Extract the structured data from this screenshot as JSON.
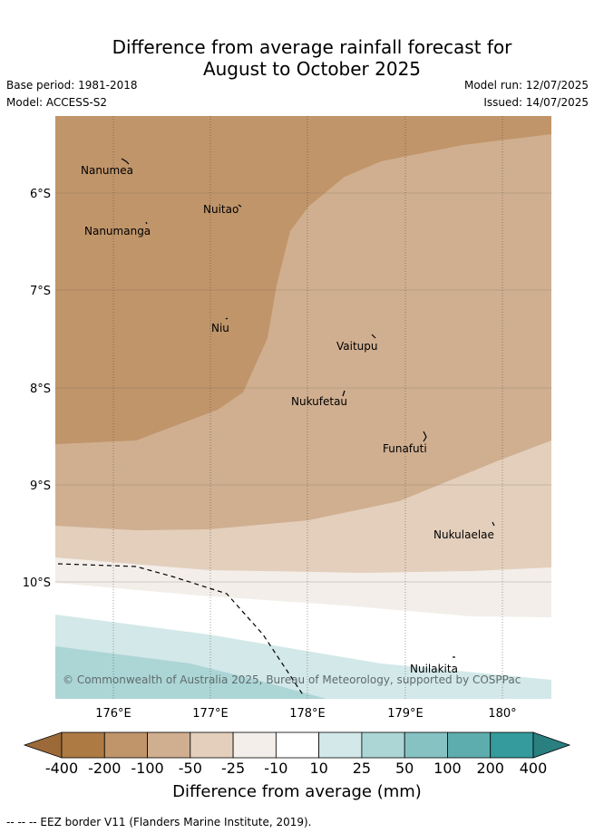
{
  "header": {
    "title_line1": "Difference from average rainfall forecast for",
    "title_line2": "August to October 2025",
    "base_period": "Base period: 1981-2018",
    "model": "Model: ACCESS-S2",
    "model_run": "Model run: 12/07/2025",
    "issued": "Issued: 14/07/2025"
  },
  "map": {
    "lat_labels": [
      "6°S",
      "7°S",
      "8°S",
      "9°S",
      "10°S"
    ],
    "lon_labels": [
      "176°E",
      "177°E",
      "178°E",
      "179°E",
      "180°"
    ],
    "places": [
      {
        "name": "Nanumea"
      },
      {
        "name": "Nuitao"
      },
      {
        "name": "Nanumanga"
      },
      {
        "name": "Niu"
      },
      {
        "name": "Vaitupu"
      },
      {
        "name": "Nukufetau"
      },
      {
        "name": "Funafuti"
      },
      {
        "name": "Nukulaelae"
      },
      {
        "name": "Nuilakita"
      }
    ],
    "copyright": "© Commonwealth of Australia 2025, Bureau of Meteorology, supported by COSPPac"
  },
  "colorbar": {
    "ticks": [
      "-400",
      "-200",
      "-100",
      "-50",
      "-25",
      "-10",
      "10",
      "25",
      "50",
      "100",
      "200",
      "400"
    ],
    "colors": [
      "#9b6a38",
      "#ae7a44",
      "#c0956a",
      "#d0af90",
      "#e3cfbc",
      "#f3eee9",
      "#ffffff",
      "#d3e8e8",
      "#acd5d6",
      "#87c2c3",
      "#5eadae",
      "#359b9c",
      "#2a7f80"
    ],
    "label": "Difference from average (mm)"
  },
  "footnote": "-- -- -- EEZ border V11 (Flanders Marine Institute, 2019)."
}
